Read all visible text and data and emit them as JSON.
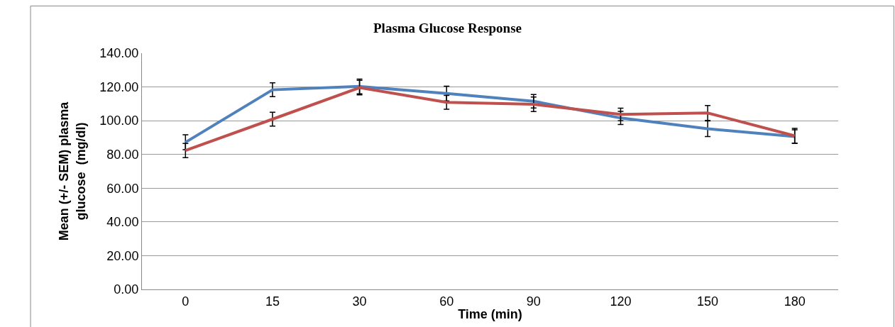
{
  "chart_data": {
    "type": "line",
    "title": "Plasma Glucose Response",
    "xlabel": "Time (min)",
    "ylabel": "Mean (+/- SEM) plasma glucose  (mg/dl)",
    "categories": [
      "0",
      "15",
      "30",
      "60",
      "90",
      "120",
      "150",
      "180"
    ],
    "series": [
      {
        "color": "#4f81bd",
        "values": [
          87.2,
          118.3,
          120.3,
          116.1,
          111.5,
          101.6,
          95.2,
          90.6
        ],
        "errors": [
          4.4,
          4.1,
          4.4,
          4.4,
          4.0,
          3.9,
          4.6,
          4.0
        ]
      },
      {
        "color": "#c0504d",
        "values": [
          82.3,
          100.9,
          119.6,
          110.9,
          109.7,
          103.7,
          104.6,
          91.0
        ],
        "errors": [
          4.2,
          4.1,
          4.3,
          4.1,
          4.3,
          3.7,
          4.4,
          4.4
        ]
      }
    ],
    "ylim": [
      0,
      140
    ],
    "yticks": [
      {
        "value": 0,
        "label": "0.00"
      },
      {
        "value": 20,
        "label": "20.00"
      },
      {
        "value": 40,
        "label": "40.00"
      },
      {
        "value": 60,
        "label": "60.00"
      },
      {
        "value": 80,
        "label": "80.00"
      },
      {
        "value": 100,
        "label": "100.00"
      },
      {
        "value": 120,
        "label": "120.00"
      },
      {
        "value": 140,
        "label": "140.00"
      }
    ],
    "grid": "y",
    "legend": false,
    "marker": "none",
    "line_style": "solid"
  }
}
